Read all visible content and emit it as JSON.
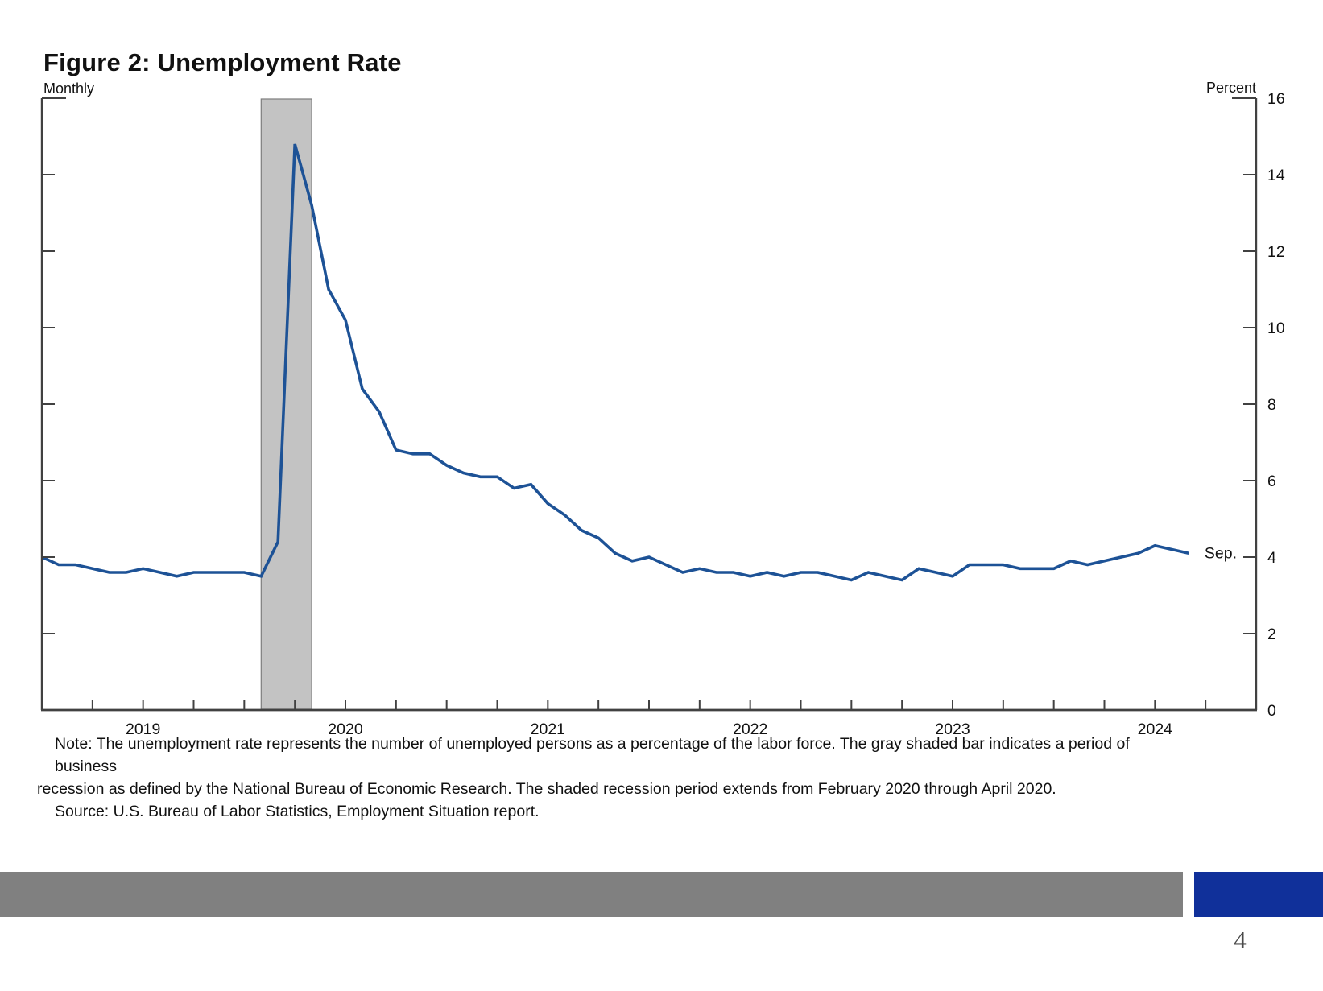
{
  "figure": {
    "title": "Figure 2: Unemployment Rate",
    "frequency_label": "Monthly",
    "unit_label": "Percent",
    "note_line1": "Note: The unemployment rate represents the number of unemployed persons as a percentage of the labor force. The gray shaded bar indicates a period of business",
    "note_line2": "recession as defined by the National Bureau of Economic Research. The shaded recession period extends from February 2020 through April 2020.",
    "source_line": "Source: U.S. Bureau of Labor Statistics, Employment Situation report."
  },
  "chart_data": {
    "type": "line",
    "title": "Figure 2: Unemployment Rate",
    "xlabel": "",
    "ylabel": "Percent",
    "ylim": [
      0,
      16
    ],
    "yticks": [
      0,
      2,
      4,
      6,
      8,
      10,
      12,
      14,
      16
    ],
    "grid": "off",
    "legend": "none",
    "x_start": "2019-01",
    "x_end_axis": "2025-01",
    "x_tick_interval_months": 3,
    "year_labels": [
      "2019",
      "2020",
      "2021",
      "2022",
      "2023",
      "2024"
    ],
    "series": [
      {
        "name": "Unemployment rate (percent, monthly)",
        "start": "2019-01",
        "frequency": "monthly",
        "values": [
          4.0,
          3.8,
          3.8,
          3.7,
          3.6,
          3.6,
          3.7,
          3.6,
          3.5,
          3.6,
          3.6,
          3.6,
          3.6,
          3.5,
          4.4,
          14.8,
          13.2,
          11.0,
          10.2,
          8.4,
          7.8,
          6.8,
          6.7,
          6.7,
          6.4,
          6.2,
          6.1,
          6.1,
          5.8,
          5.9,
          5.4,
          5.1,
          4.7,
          4.5,
          4.1,
          3.9,
          4.0,
          3.8,
          3.6,
          3.7,
          3.6,
          3.6,
          3.5,
          3.6,
          3.5,
          3.6,
          3.6,
          3.5,
          3.4,
          3.6,
          3.5,
          3.4,
          3.7,
          3.6,
          3.5,
          3.8,
          3.8,
          3.8,
          3.7,
          3.7,
          3.7,
          3.9,
          3.8,
          3.9,
          4.0,
          4.1,
          4.3,
          4.2,
          4.1
        ]
      }
    ],
    "recession_band": {
      "from": "2020-02",
      "to": "2020-04"
    },
    "annotation": {
      "text": "Sep.",
      "x": "2024-09",
      "y": 4.1
    },
    "line_color": "#1d5296",
    "recession_fill": "#c3c3c3",
    "axis_color": "#414141"
  },
  "footer": {
    "gray_bar_color": "#808080",
    "blue_bar_color": "#10309a",
    "page_number": "4"
  }
}
